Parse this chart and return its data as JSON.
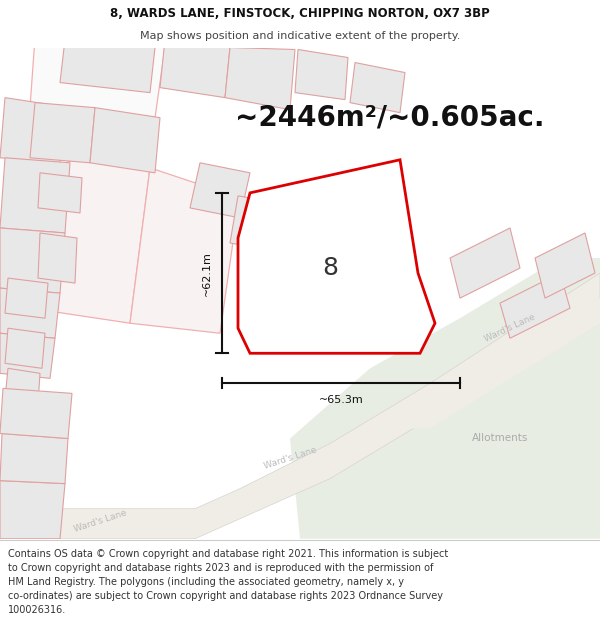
{
  "title_line1": "8, WARDS LANE, FINSTOCK, CHIPPING NORTON, OX7 3BP",
  "title_line2": "Map shows position and indicative extent of the property.",
  "area_text": "~2446m²/~0.605ac.",
  "property_number": "8",
  "dim_v_label": "~62.1m",
  "dim_h_label": "~65.3m",
  "wards_lane_1": "Ward's Lane",
  "wards_lane_2": "Ward's Lane",
  "wards_lane_3": "Ward's Lane",
  "allotments_label": "Allotments",
  "footer_text": "Contains OS data © Crown copyright and database right 2021. This information is subject to Crown copyright and database rights 2023 and is reproduced with the permission of HM Land Registry. The polygons (including the associated geometry, namely x, y co-ordinates) are subject to Crown copyright and database rights 2023 Ordnance Survey 100026316.",
  "map_bg": "#f7f5f2",
  "road_color": "#e8e4de",
  "green_fc": "#e8ede4",
  "building_fc": "#e8e8e8",
  "building_ec": "#e0a0a0",
  "parcel_ec": "#f0b0b0",
  "parcel_fc": "#fafafa",
  "highlight_ec": "#dd0000",
  "highlight_fc": "#ffffff",
  "arrow_color": "#111111",
  "wl_color": "#bbbbbb",
  "allot_color": "#aaaaaa",
  "header_bg": "#ffffff",
  "footer_bg": "#ffffff",
  "title_fontsize": 8.5,
  "subtitle_fontsize": 8.0,
  "area_fontsize": 20,
  "prop_num_fontsize": 18,
  "dim_fontsize": 8.0,
  "road_label_fontsize": 6.5,
  "allot_fontsize": 7.5,
  "footer_fontsize": 7.0
}
